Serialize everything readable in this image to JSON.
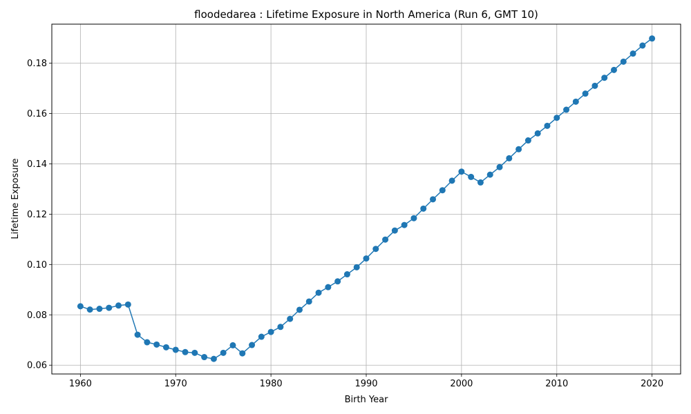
{
  "chart_data": {
    "type": "line",
    "title": "floodedarea : Lifetime Exposure in North America (Run 6, GMT 10)",
    "xlabel": "Birth Year",
    "ylabel": "Lifetime Exposure",
    "xlim": [
      1957,
      2023
    ],
    "ylim": [
      0.0565,
      0.1955
    ],
    "xticks": [
      1960,
      1970,
      1980,
      1990,
      2000,
      2010,
      2020
    ],
    "yticks": [
      0.06,
      0.08,
      0.1,
      0.12,
      0.14,
      0.16,
      0.18
    ],
    "ytick_labels": [
      "0.06",
      "0.08",
      "0.10",
      "0.12",
      "0.14",
      "0.16",
      "0.18"
    ],
    "grid": true,
    "color": "#1f77b4",
    "series": [
      {
        "name": "Lifetime Exposure",
        "x": [
          1960,
          1961,
          1962,
          1963,
          1964,
          1965,
          1966,
          1967,
          1968,
          1969,
          1970,
          1971,
          1972,
          1973,
          1974,
          1975,
          1976,
          1977,
          1978,
          1979,
          1980,
          1981,
          1982,
          1983,
          1984,
          1985,
          1986,
          1987,
          1988,
          1989,
          1990,
          1991,
          1992,
          1993,
          1994,
          1995,
          1996,
          1997,
          1998,
          1999,
          2000,
          2001,
          2002,
          2003,
          2004,
          2005,
          2006,
          2007,
          2008,
          2009,
          2010,
          2011,
          2012,
          2013,
          2014,
          2015,
          2016,
          2017,
          2018,
          2019,
          2020
        ],
        "y": [
          0.0834,
          0.0821,
          0.0824,
          0.0828,
          0.0837,
          0.0841,
          0.0721,
          0.0691,
          0.0682,
          0.0671,
          0.0661,
          0.0652,
          0.0649,
          0.0632,
          0.0625,
          0.0649,
          0.0679,
          0.0647,
          0.068,
          0.0713,
          0.0732,
          0.0752,
          0.0784,
          0.082,
          0.0853,
          0.0888,
          0.091,
          0.0933,
          0.0961,
          0.0989,
          0.1024,
          0.1062,
          0.1099,
          0.1135,
          0.1157,
          0.1184,
          0.1222,
          0.1259,
          0.1295,
          0.1333,
          0.1369,
          0.1348,
          0.1326,
          0.1357,
          0.1387,
          0.1422,
          0.1458,
          0.1493,
          0.1521,
          0.1551,
          0.1583,
          0.1615,
          0.1647,
          0.1679,
          0.171,
          0.1742,
          0.1773,
          0.1806,
          0.1838,
          0.187,
          0.1898
        ]
      }
    ]
  }
}
